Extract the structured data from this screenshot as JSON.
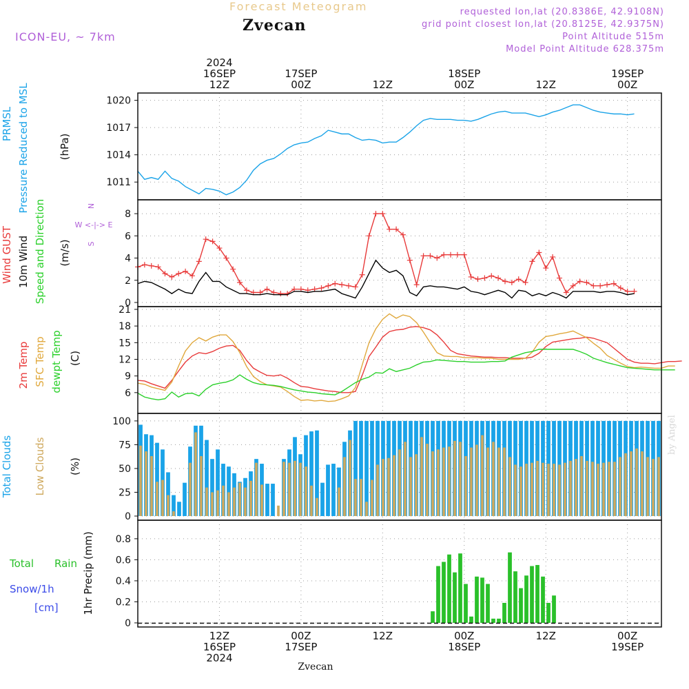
{
  "header": {
    "title": "Forecast Meteogram",
    "location": "Zvecan",
    "model": "ICON-EU, ~ 7km",
    "requested": "requested lon,lat (20.8386E, 42.9108N)",
    "closest": "grid point closest lon,lat (20.8125E, 42.9375N)",
    "altitude": "Point Altitude 515m",
    "model_altitude": "Model Point Altitude 628.375m"
  },
  "footer_location": "Zvecan",
  "watermark": "by Angel",
  "time_axis": {
    "top": [
      {
        "t": 12,
        "lines": [
          "2024",
          "16SEP",
          "12Z"
        ]
      },
      {
        "t": 24,
        "lines": [
          "17SEP",
          "00Z"
        ]
      },
      {
        "t": 36,
        "lines": [
          "12Z"
        ]
      },
      {
        "t": 48,
        "lines": [
          "18SEP",
          "00Z"
        ]
      },
      {
        "t": 60,
        "lines": [
          "12Z"
        ]
      },
      {
        "t": 72,
        "lines": [
          "19SEP",
          "00Z"
        ]
      }
    ],
    "bottom": [
      {
        "t": 12,
        "lines": [
          "12Z",
          "16SEP",
          "2024"
        ]
      },
      {
        "t": 24,
        "lines": [
          "00Z",
          "17SEP"
        ]
      },
      {
        "t": 36,
        "lines": [
          "12Z"
        ]
      },
      {
        "t": 48,
        "lines": [
          "00Z",
          "18SEP"
        ]
      },
      {
        "t": 60,
        "lines": [
          "12Z"
        ]
      },
      {
        "t": 72,
        "lines": [
          "00Z",
          "19SEP"
        ]
      }
    ]
  },
  "chart_data": [
    {
      "type": "line",
      "panel": "pressure",
      "labels": {
        "a": "PRMSL",
        "b": "Pressure Reduced to MSL",
        "unit": "(hPa)"
      },
      "ylim": [
        1009.5,
        1020.5
      ],
      "yticks": [
        1011,
        1014,
        1017,
        1020
      ],
      "series": [
        {
          "color": "#1aa3e8",
          "values": [
            1012.2,
            1011.3,
            1011.5,
            1011.3,
            1012.2,
            1011.4,
            1011.1,
            1010.5,
            1010.1,
            1009.7,
            1010.3,
            1010.2,
            1010.0,
            1009.6,
            1009.9,
            1010.4,
            1011.2,
            1012.3,
            1013.0,
            1013.4,
            1013.6,
            1014.1,
            1014.7,
            1015.1,
            1015.3,
            1015.4,
            1015.8,
            1016.1,
            1016.7,
            1016.5,
            1016.3,
            1016.3,
            1015.9,
            1015.6,
            1015.7,
            1015.6,
            1015.3,
            1015.4,
            1015.4,
            1015.9,
            1016.5,
            1017.2,
            1017.8,
            1018.0,
            1017.9,
            1017.9,
            1017.9,
            1017.8,
            1017.8,
            1017.7,
            1017.9,
            1018.2,
            1018.5,
            1018.7,
            1018.8,
            1018.6,
            1018.6,
            1018.6,
            1018.4,
            1018.2,
            1018.4,
            1018.7,
            1018.9,
            1019.2,
            1019.5,
            1019.5,
            1019.2,
            1018.9,
            1018.7,
            1018.6,
            1018.5,
            1018.5,
            1018.4,
            1018.5
          ]
        }
      ]
    },
    {
      "type": "line",
      "panel": "wind",
      "labels": {
        "a": "Wind GUST",
        "b": "10m Wind",
        "c": "Speed and Direction",
        "unit": "(m/s)",
        "compass": [
          "N",
          "W <-|-> E",
          "S"
        ]
      },
      "ylim": [
        0,
        9
      ],
      "yticks": [
        0,
        2,
        4,
        6,
        8
      ],
      "series": [
        {
          "name": "gust",
          "color": "#e83a3a",
          "values": [
            3.2,
            3.4,
            3.3,
            3.2,
            2.6,
            2.3,
            2.6,
            2.8,
            2.4,
            3.7,
            5.7,
            5.5,
            4.9,
            4.0,
            3.0,
            1.8,
            1.1,
            0.9,
            0.9,
            1.2,
            0.9,
            0.8,
            0.8,
            1.2,
            1.2,
            1.1,
            1.2,
            1.3,
            1.5,
            1.7,
            1.6,
            1.5,
            1.4,
            2.5,
            6.0,
            8.0,
            8.0,
            6.6,
            6.6,
            6.1,
            3.8,
            1.6,
            4.2,
            4.2,
            4.0,
            4.3,
            4.3,
            4.3,
            4.3,
            2.3,
            2.1,
            2.2,
            2.4,
            2.2,
            1.9,
            1.8,
            2.1,
            1.8,
            3.7,
            4.5,
            3.1,
            4.1,
            2.2,
            0.9,
            1.5,
            1.9,
            1.8,
            1.5,
            1.5,
            1.6,
            1.7,
            1.3,
            1.0,
            1.0
          ]
        },
        {
          "name": "10m",
          "color": "#000000",
          "values": [
            1.7,
            1.9,
            1.8,
            1.5,
            1.2,
            0.8,
            1.2,
            0.9,
            0.8,
            1.9,
            2.7,
            1.9,
            1.9,
            1.4,
            1.1,
            0.8,
            0.8,
            0.7,
            0.7,
            0.8,
            0.7,
            0.7,
            0.7,
            1.0,
            1.0,
            0.9,
            1.0,
            1.0,
            1.1,
            1.2,
            0.8,
            0.6,
            0.4,
            1.4,
            2.6,
            3.8,
            3.1,
            2.7,
            2.9,
            2.4,
            0.9,
            0.6,
            1.4,
            1.5,
            1.4,
            1.4,
            1.3,
            1.2,
            1.4,
            1.0,
            0.9,
            0.7,
            0.9,
            1.1,
            0.9,
            0.4,
            1.1,
            1.0,
            0.6,
            0.8,
            0.6,
            0.9,
            0.7,
            0.4,
            1.0,
            1.0,
            1.0,
            1.0,
            0.9,
            1.0,
            1.0,
            0.9,
            0.7,
            0.8
          ]
        }
      ]
    },
    {
      "type": "line",
      "panel": "temperature",
      "labels": {
        "a": "2m Temp",
        "b": "SFC Temp",
        "c": "dewpt Temp",
        "unit": "(C)"
      },
      "ylim": [
        3,
        21
      ],
      "yticks": [
        6,
        9,
        12,
        15,
        18,
        21
      ],
      "series": [
        {
          "name": "2m",
          "color": "#e83a3a",
          "values": [
            8.2,
            8.1,
            7.6,
            7.2,
            6.8,
            8.2,
            9.9,
            11.5,
            12.6,
            13.2,
            13.0,
            13.4,
            14.0,
            14.4,
            14.5,
            13.6,
            11.8,
            10.4,
            9.7,
            9.1,
            9.0,
            9.2,
            8.6,
            7.8,
            7.1,
            7.0,
            6.7,
            6.5,
            6.3,
            6.2,
            6.0,
            6.0,
            6.2,
            9.1,
            12.5,
            14.2,
            16.0,
            17.0,
            17.3,
            17.4,
            17.8,
            17.9,
            17.7,
            17.3,
            16.4,
            15.1,
            13.6,
            13.0,
            12.8,
            12.6,
            12.5,
            12.4,
            12.4,
            12.3,
            12.3,
            12.2,
            12.2,
            12.2,
            12.4,
            13.1,
            14.3,
            15.1,
            15.3,
            15.5,
            15.7,
            15.8,
            16.0,
            15.8,
            15.4,
            15.0,
            14.0,
            13.0,
            12.0,
            11.5,
            11.3,
            11.3,
            11.2,
            11.4,
            11.6,
            11.6,
            11.7
          ]
        },
        {
          "name": "SFC",
          "color": "#e0a83c",
          "values": [
            7.7,
            7.5,
            7.0,
            6.7,
            6.4,
            7.9,
            10.8,
            13.5,
            15.0,
            15.9,
            15.3,
            16.0,
            16.4,
            16.4,
            15.2,
            13.2,
            10.7,
            8.9,
            8.0,
            7.4,
            7.2,
            7.0,
            6.2,
            5.3,
            4.6,
            4.7,
            4.5,
            4.6,
            4.4,
            4.5,
            4.9,
            5.4,
            6.9,
            11.0,
            15.0,
            17.5,
            19.2,
            20.2,
            19.4,
            20.0,
            19.7,
            18.6,
            16.9,
            15.0,
            13.2,
            12.6,
            12.5,
            12.5,
            12.3,
            12.3,
            12.3,
            12.2,
            12.2,
            12.0,
            12.0,
            12.0,
            12.0,
            12.2,
            13.3,
            15.1,
            16.1,
            16.3,
            16.6,
            16.8,
            17.1,
            16.5,
            15.9,
            14.9,
            14.0,
            12.7,
            12.0,
            11.3,
            10.7,
            10.5,
            10.6,
            10.5,
            10.4,
            10.4,
            10.8,
            10.8
          ]
        },
        {
          "name": "dewpt",
          "color": "#2ad02a",
          "values": [
            5.9,
            5.2,
            4.9,
            4.7,
            4.9,
            6.1,
            5.2,
            5.8,
            5.9,
            5.4,
            6.6,
            7.4,
            7.7,
            7.9,
            8.3,
            9.2,
            8.4,
            7.8,
            7.5,
            7.4,
            7.3,
            7.1,
            6.8,
            6.5,
            6.3,
            6.1,
            6.0,
            5.8,
            5.7,
            5.6,
            6.2,
            7.0,
            7.8,
            8.4,
            8.8,
            9.6,
            9.5,
            10.3,
            9.8,
            10.1,
            10.4,
            11.0,
            11.5,
            11.6,
            11.9,
            11.8,
            11.7,
            11.6,
            11.6,
            11.5,
            11.5,
            11.5,
            11.6,
            11.6,
            11.7,
            12.4,
            12.8,
            13.2,
            13.4,
            13.8,
            13.8,
            13.8,
            13.8,
            13.8,
            13.8,
            13.4,
            12.9,
            12.2,
            11.8,
            11.4,
            11.1,
            10.8,
            10.5,
            10.4,
            10.3,
            10.2,
            10.1,
            10.1,
            10.1,
            10.1
          ]
        }
      ]
    },
    {
      "type": "bar",
      "panel": "clouds",
      "labels": {
        "a": "Total Clouds",
        "b": "Low Clouds",
        "unit": "(%)"
      },
      "ylim": [
        0,
        105
      ],
      "yticks": [
        0,
        25,
        50,
        75,
        100
      ],
      "series": [
        {
          "name": "total",
          "color": "#1aa3e8",
          "values": [
            96,
            86,
            85,
            77,
            70,
            46,
            22,
            15,
            35,
            73,
            95,
            95,
            80,
            60,
            70,
            55,
            52,
            45,
            36,
            40,
            47,
            60,
            55,
            34,
            34,
            0,
            60,
            70,
            83,
            65,
            85,
            89,
            90,
            35,
            54,
            55,
            51,
            78,
            90,
            100,
            100,
            100,
            100,
            100,
            100,
            100,
            100,
            100,
            100,
            100,
            100,
            100,
            100,
            100,
            100,
            100,
            100,
            100,
            100,
            100,
            100,
            100,
            100,
            100,
            100,
            100,
            100,
            100,
            100,
            100,
            100,
            100,
            100,
            100,
            100,
            100,
            100,
            100,
            100,
            100,
            100,
            100,
            100,
            100,
            100,
            100,
            100,
            100,
            100,
            100,
            100,
            100,
            100,
            100,
            100
          ]
        },
        {
          "name": "low",
          "color": "#cfa95e",
          "values": [
            74,
            68,
            63,
            36,
            38,
            22,
            5,
            0,
            0,
            56,
            88,
            63,
            30,
            25,
            27,
            32,
            25,
            30,
            35,
            30,
            37,
            56,
            33,
            0,
            0,
            11,
            57,
            56,
            58,
            56,
            52,
            32,
            19,
            0,
            0,
            0,
            30,
            62,
            80,
            39,
            39,
            15,
            38,
            54,
            60,
            61,
            64,
            70,
            78,
            62,
            65,
            83,
            76,
            68,
            70,
            72,
            73,
            79,
            78,
            63,
            72,
            75,
            85,
            72,
            78,
            72,
            72,
            62,
            54,
            52,
            55,
            56,
            58,
            56,
            55,
            55,
            54,
            56,
            58,
            60,
            63,
            58,
            57,
            55,
            56,
            57,
            57,
            62,
            66,
            68,
            71,
            68,
            62,
            60,
            62
          ]
        }
      ]
    },
    {
      "type": "bar",
      "panel": "precip",
      "labels": {
        "a": "Total",
        "b": "Rain",
        "c": "Snow/1h",
        "d": "[cm]",
        "unit": "1hr Precip (mm)"
      },
      "ylim": [
        0,
        0.95
      ],
      "yticks": [
        0,
        0.2,
        0.4,
        0.6,
        0.8
      ],
      "series": [
        {
          "name": "rain",
          "color": "#2ac02a",
          "values": [
            0,
            0,
            0,
            0,
            0,
            0,
            0,
            0,
            0,
            0,
            0,
            0,
            0,
            0,
            0,
            0,
            0,
            0,
            0,
            0,
            0,
            0,
            0,
            0,
            0,
            0,
            0,
            0,
            0,
            0,
            0,
            0,
            0,
            0,
            0,
            0,
            0,
            0,
            0,
            0,
            0,
            0,
            0,
            0,
            0,
            0,
            0,
            0,
            0,
            0,
            0,
            0,
            0,
            0.11,
            0.54,
            0.58,
            0.65,
            0.48,
            0.66,
            0.37,
            0.06,
            0.44,
            0.43,
            0.37,
            0.04,
            0.04,
            0.19,
            0.67,
            0.49,
            0.33,
            0.45,
            0.54,
            0.55,
            0.44,
            0.19,
            0.26,
            0,
            0,
            0,
            0,
            0,
            0,
            0,
            0,
            0,
            0,
            0,
            0,
            0,
            0,
            0,
            0,
            0,
            0,
            0
          ]
        }
      ]
    }
  ]
}
